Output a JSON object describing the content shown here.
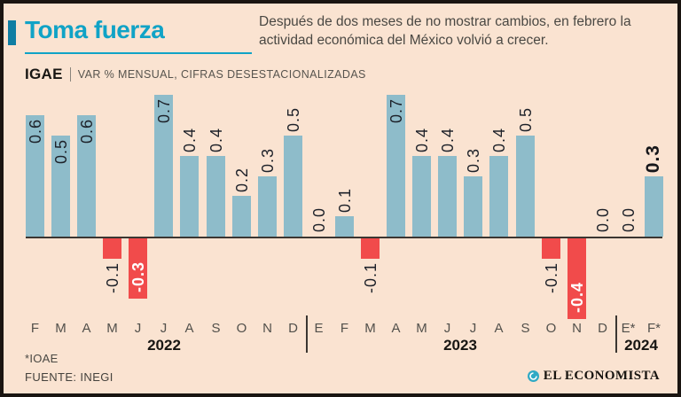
{
  "header": {
    "title": "Toma fuerza",
    "subtitle": "Después de dos meses de no mostrar cambios, en febrero la actividad económica del México volvió a crecer.",
    "kicker_label": "IGAE",
    "kicker_desc": "VAR % MENSUAL, CIFRAS DESESTACIONALIZADAS"
  },
  "chart_data": {
    "type": "bar",
    "title": "IGAE, var % mensual, cifras desestacionalizadas",
    "categories": [
      "F",
      "M",
      "A",
      "M",
      "J",
      "J",
      "A",
      "S",
      "O",
      "N",
      "D",
      "E",
      "F",
      "M",
      "A",
      "M",
      "J",
      "J",
      "A",
      "S",
      "O",
      "N",
      "D",
      "E*",
      "F*"
    ],
    "values": [
      0.6,
      0.5,
      0.6,
      -0.1,
      -0.3,
      0.7,
      0.4,
      0.4,
      0.2,
      0.3,
      0.5,
      0.0,
      0.1,
      -0.1,
      0.7,
      0.4,
      0.4,
      0.3,
      0.4,
      0.5,
      -0.1,
      -0.4,
      0.0,
      0.0,
      0.3
    ],
    "year_groups": [
      {
        "label": "2022",
        "from": 0,
        "to": 10
      },
      {
        "label": "2023",
        "from": 11,
        "to": 22
      },
      {
        "label": "2024",
        "from": 23,
        "to": 24
      }
    ],
    "ylim": [
      -0.5,
      0.8
    ],
    "xlabel": "",
    "ylabel": "",
    "grid": false,
    "legend": "none",
    "bar_color_positive": "#8ebcca",
    "bar_color_negative": "#f14b4b",
    "value_label_rotation_deg": -90,
    "inside_label_indices": [
      0,
      1,
      2,
      5,
      14
    ],
    "white_inside_label_indices": [
      4,
      21
    ],
    "emphasis_label_index": 24
  },
  "footer": {
    "footnote": "*IOAE",
    "source": "FUENTE: INEGI",
    "brand": "EL ECONOMISTA"
  },
  "colors": {
    "background": "#fae3d1",
    "accent_teal": "#10a3c6",
    "accent_dark_teal": "#0f7ea3",
    "border": "#1a1511",
    "axis_line": "#3b3631",
    "text_dark": "#181613",
    "text_gray": "#57544e",
    "value_label": "#1d2129"
  }
}
